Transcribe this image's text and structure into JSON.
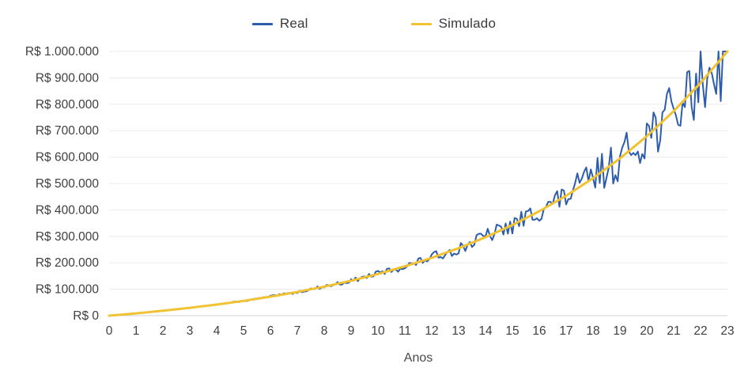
{
  "chart_data": {
    "type": "line",
    "title": "",
    "xlabel": "Anos",
    "ylabel": "",
    "xlim": [
      0,
      23
    ],
    "ylim": [
      0,
      1000000
    ],
    "grid": "horizontal",
    "legend_position": "top-center",
    "x_ticks": [
      0,
      1,
      2,
      3,
      4,
      5,
      6,
      7,
      8,
      9,
      10,
      11,
      12,
      13,
      14,
      15,
      16,
      17,
      18,
      19,
      20,
      21,
      22,
      23
    ],
    "y_ticks": [
      "R$ 0",
      "R$ 100.000",
      "R$ 200.000",
      "R$ 300.000",
      "R$ 400.000",
      "R$ 500.000",
      "R$ 600.000",
      "R$ 700.000",
      "R$ 800.000",
      "R$ 900.000",
      "R$ 1.000.000"
    ],
    "y_tick_step": 100000,
    "series": [
      {
        "name": "Real",
        "color": "#2e5cab",
        "style": "noisy",
        "yearly_values": [
          0,
          8600,
          18900,
          29300,
          42500,
          55700,
          72400,
          89100,
          110500,
          131600,
          159500,
          185400,
          221000,
          252900,
          299800,
          340100,
          399600,
          450700,
          525600,
          589000,
          688000,
          766000,
          893000,
          1000000
        ]
      },
      {
        "name": "Simulado",
        "color": "#f1c232",
        "style": "smooth",
        "yearly_values": [
          0,
          8700,
          18500,
          29600,
          42000,
          56100,
          71900,
          89700,
          109800,
          132400,
          157900,
          186700,
          219000,
          255500,
          296600,
          343000,
          395200,
          454000,
          520300,
          595000,
          679100,
          774000,
          880800,
          1000000
        ]
      }
    ],
    "real_noise": {
      "seed": 13,
      "points_per_year": 12,
      "amplitude_start": 0.03,
      "amplitude_end": 0.17,
      "exponent": 1.6
    },
    "colors": {
      "grid": "#ebebeb",
      "axis_line": "#d0d0d0",
      "tick_label": "#3f3f3f",
      "legend_label": "#3a3a3a",
      "axis_title": "#4a4a4a"
    }
  }
}
